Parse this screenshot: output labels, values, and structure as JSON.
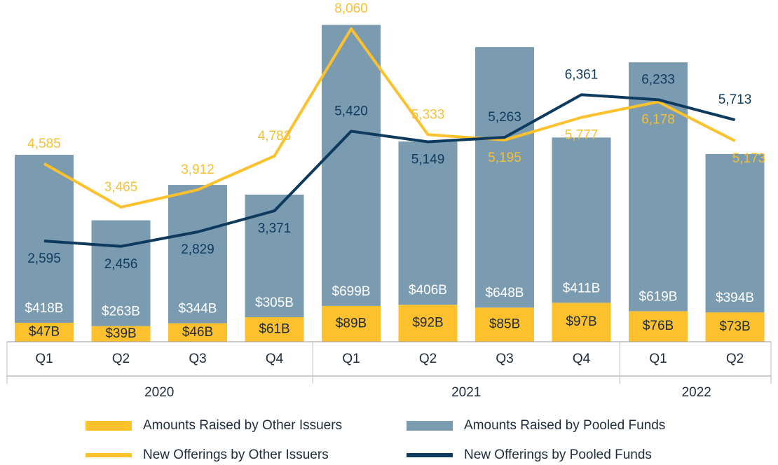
{
  "chart_data": {
    "type": "bar",
    "stacked": true,
    "categories": [
      "Q1",
      "Q2",
      "Q3",
      "Q4",
      "Q1",
      "Q2",
      "Q3",
      "Q4",
      "Q1",
      "Q2"
    ],
    "category_groups": [
      "2020",
      "2020",
      "2020",
      "2020",
      "2021",
      "2021",
      "2021",
      "2021",
      "2022",
      "2022"
    ],
    "ylim": [
      0,
      850
    ],
    "y2lim": [
      0,
      8800
    ],
    "series": [
      {
        "name": "Amounts Raised by Other Issuers",
        "type": "bar",
        "color": "#fcc12d",
        "values": [
          47,
          39,
          46,
          61,
          89,
          92,
          85,
          97,
          76,
          73
        ],
        "value_labels": [
          "$47B",
          "$39B",
          "$46B",
          "$61B",
          "$89B",
          "$92B",
          "$85B",
          "$97B",
          "$76B",
          "$73B"
        ]
      },
      {
        "name": "Amounts Raised by Pooled Funds",
        "type": "bar",
        "color": "#7b9bb0",
        "values": [
          418,
          263,
          344,
          305,
          699,
          406,
          648,
          411,
          619,
          394
        ],
        "value_labels": [
          "$418B",
          "$263B",
          "$344B",
          "$305B",
          "$699B",
          "$406B",
          "$648B",
          "$411B",
          "$619B",
          "$394B"
        ]
      },
      {
        "name": "New Offerings by Other Issuers",
        "type": "line",
        "axis": "y2",
        "color": "#fcc12d",
        "values": [
          4585,
          3465,
          3912,
          4783,
          8060,
          5333,
          5195,
          5777,
          6178,
          5173
        ],
        "value_labels": [
          "4,585",
          "3,465",
          "3,912",
          "4,783",
          "8,060",
          "5,333",
          "5,195",
          "5,777",
          "6,178",
          "5,173"
        ]
      },
      {
        "name": "New Offerings by Pooled Funds",
        "type": "line",
        "axis": "y2",
        "color": "#0e3a5e",
        "values": [
          2595,
          2456,
          2829,
          3371,
          5420,
          5149,
          5263,
          6361,
          6233,
          5713
        ],
        "value_labels": [
          "2,595",
          "2,456",
          "2,829",
          "3,371",
          "5,420",
          "5,149",
          "5,263",
          "6,361",
          "6,233",
          "5,713"
        ]
      }
    ]
  }
}
